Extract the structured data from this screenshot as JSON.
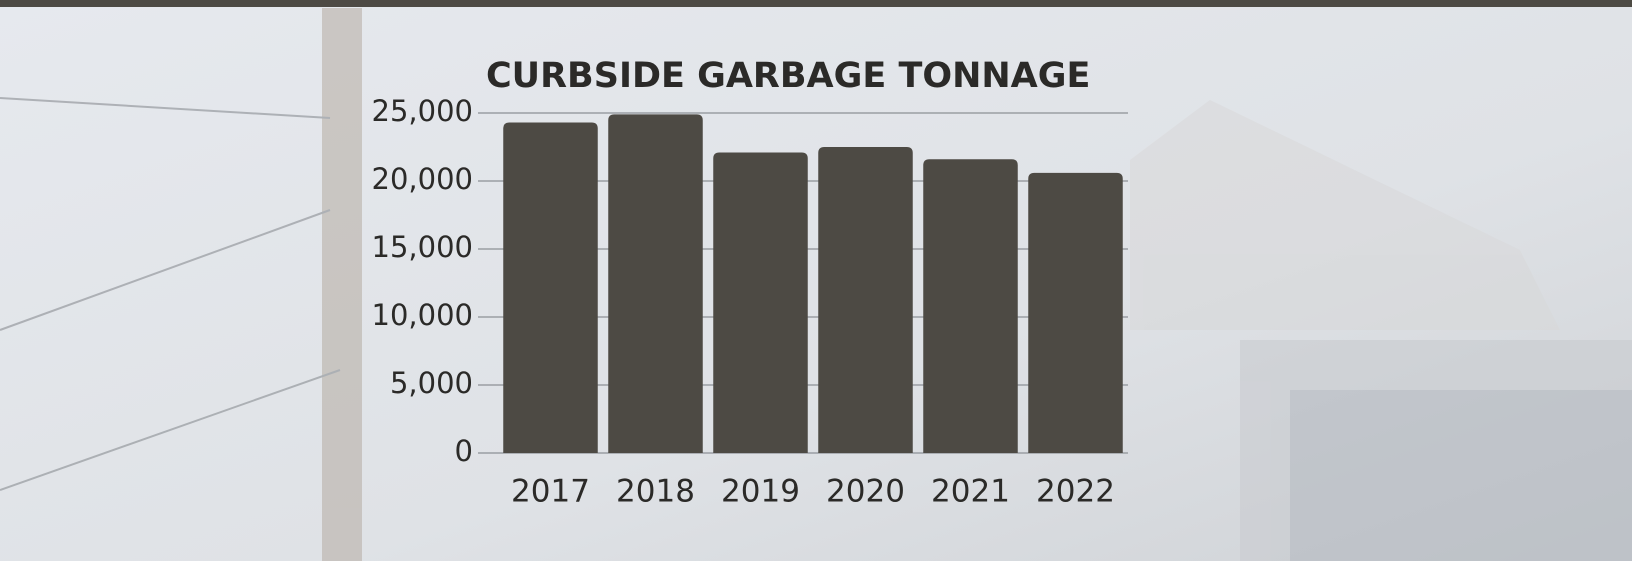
{
  "chart_data": {
    "type": "bar",
    "title": "CURBSIDE GARBAGE TONNAGE",
    "categories": [
      "2017",
      "2018",
      "2019",
      "2020",
      "2021",
      "2022"
    ],
    "values": [
      24300,
      24900,
      22100,
      22500,
      21600,
      20600
    ],
    "color": "#4d4a44",
    "ylim": [
      0,
      25000
    ],
    "yticks": [
      0,
      {
        "value": 5000,
        "label": "5,000"
      },
      {
        "value": 10000,
        "label": "10,000"
      },
      {
        "value": 15000,
        "label": "15,000"
      },
      {
        "value": 20000,
        "label": "20,000"
      },
      {
        "value": 25000,
        "label": "25,000"
      }
    ],
    "grid": true
  }
}
